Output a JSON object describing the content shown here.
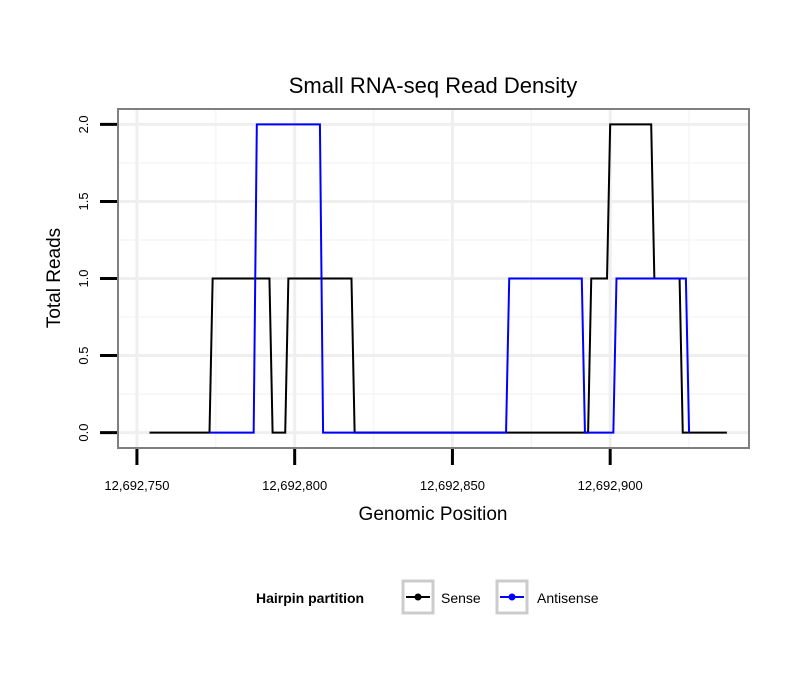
{
  "chart_data": {
    "type": "line",
    "title": "Small RNA-seq Read Density",
    "xlabel": "Genomic Position",
    "ylabel": "Total Reads",
    "xlim": [
      12692744,
      12692944
    ],
    "ylim": [
      -0.1,
      2.1
    ],
    "x_ticks": [
      {
        "value": 12692750,
        "label": "12,692,750"
      },
      {
        "value": 12692800,
        "label": "12,692,800"
      },
      {
        "value": 12692850,
        "label": "12,692,850"
      },
      {
        "value": 12692900,
        "label": "12,692,900"
      }
    ],
    "y_ticks": [
      {
        "value": 0,
        "label": "0.0"
      },
      {
        "value": 0.5,
        "label": "0.5"
      },
      {
        "value": 1,
        "label": "1.0"
      },
      {
        "value": 1.5,
        "label": "1.5"
      },
      {
        "value": 2,
        "label": "2.0"
      }
    ],
    "legend": {
      "title": "Hairpin partition",
      "position": "bottom",
      "entries": [
        "Sense",
        "Antisense"
      ]
    },
    "series": [
      {
        "name": "Sense",
        "color": "#000000",
        "x": [
          12692754,
          12692773,
          12692774,
          12692792,
          12692793,
          12692797,
          12692798,
          12692818,
          12692819,
          12692893,
          12692894,
          12692899,
          12692900,
          12692913,
          12692914,
          12692922,
          12692923,
          12692937
        ],
        "y": [
          0,
          0,
          1,
          1,
          0,
          0,
          1,
          1,
          0,
          0,
          1,
          1,
          2,
          2,
          1,
          1,
          0,
          0
        ]
      },
      {
        "name": "Antisense",
        "color": "#0000ff",
        "x": [
          12692773,
          12692787,
          12692788,
          12692808,
          12692809,
          12692867,
          12692868,
          12692891,
          12692892,
          12692901,
          12692902,
          12692924,
          12692925
        ],
        "y": [
          0,
          0,
          2,
          2,
          0,
          0,
          1,
          1,
          0,
          0,
          1,
          1,
          0
        ]
      }
    ]
  }
}
